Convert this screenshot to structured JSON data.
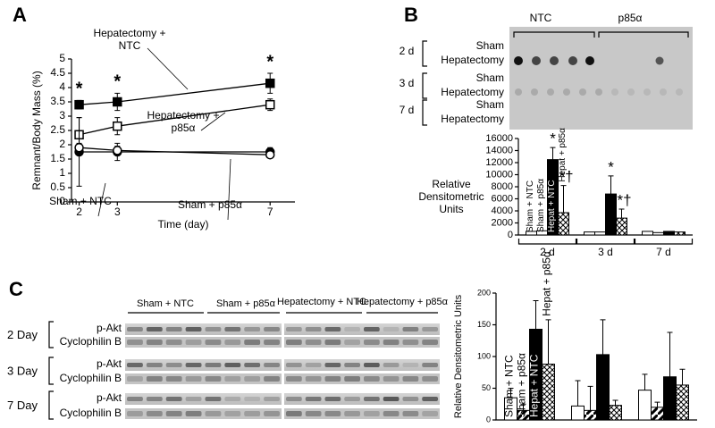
{
  "chart_data": [
    {
      "type": "line",
      "panel": "A",
      "xlabel": "Time (day)",
      "ylabel": "Remnant/Body Mass (%)",
      "x": [
        2,
        3,
        7
      ],
      "xlim": [
        1.8,
        7.65
      ],
      "xticks": [
        2,
        3,
        7
      ],
      "ylim": [
        0,
        5
      ],
      "yticks": [
        0,
        0.5,
        1,
        1.5,
        2,
        2.5,
        3,
        3.5,
        4,
        4.5,
        5
      ],
      "series": [
        {
          "name": "Hepatectomy + NTC",
          "color": "#000000",
          "marker": "square",
          "marker_fill": "#000000",
          "values": [
            3.4,
            3.5,
            4.15
          ],
          "errors": [
            0.15,
            0.3,
            0.35
          ]
        },
        {
          "name": "Hepatectomy + p85α",
          "color": "#000000",
          "marker": "square",
          "marker_fill": "#ffffff",
          "values": [
            2.35,
            2.65,
            3.4
          ],
          "errors": [
            0.6,
            0.3,
            0.2
          ]
        },
        {
          "name": "Sham + NTC",
          "color": "#000000",
          "marker": "circle",
          "marker_fill": "#000000",
          "values": [
            1.75,
            1.75,
            1.75
          ],
          "errors": [
            1.2,
            0.3,
            0.15
          ]
        },
        {
          "name": "Sham + p85α",
          "color": "#000000",
          "marker": "circle",
          "marker_fill": "#ffffff",
          "values": [
            1.9,
            1.8,
            1.65
          ],
          "errors": [
            0.15,
            0.15,
            0.1
          ]
        }
      ],
      "annotations": [
        {
          "text": "*",
          "x": 2
        },
        {
          "text": "*",
          "x": 3
        },
        {
          "text": "*",
          "x": 7
        }
      ]
    },
    {
      "type": "bar",
      "panel": "B",
      "ylabel": "Relative Densitometric Units",
      "categories": [
        "2 d",
        "3 d",
        "7 d"
      ],
      "ylim": [
        0,
        16000
      ],
      "yticks": [
        0,
        2000,
        4000,
        6000,
        8000,
        10000,
        12000,
        14000,
        16000
      ],
      "series": [
        {
          "name": "Sham + NTC",
          "color": "#ffffff",
          "values": [
            600,
            500,
            600
          ],
          "errors": [
            0,
            0,
            0
          ]
        },
        {
          "name": "Sham + p85α",
          "color": "#ffffff",
          "values": [
            700,
            500,
            400
          ],
          "errors": [
            0,
            0,
            0
          ]
        },
        {
          "name": "Hepat + NTC",
          "color": "#000000",
          "values": [
            12500,
            6800,
            600
          ],
          "errors": [
            2000,
            3000,
            0
          ]
        },
        {
          "name": "Hepat + p85α",
          "color": "#ffffff",
          "pattern": "crosshatch",
          "values": [
            3700,
            2800,
            500
          ],
          "errors": [
            4500,
            1500,
            0
          ]
        }
      ],
      "annotations": [
        {
          "text": "*",
          "category": "2 d",
          "series": "Hepat + NTC"
        },
        {
          "text": "*†",
          "category": "2 d",
          "series": "Hepat + p85α"
        },
        {
          "text": "*",
          "category": "3 d",
          "series": "Hepat + NTC"
        },
        {
          "text": "*†",
          "category": "3 d",
          "series": "Hepat + p85α"
        }
      ]
    },
    {
      "type": "bar",
      "panel": "C",
      "ylabel": "Relative Densitometric Units",
      "categories": [
        null,
        null,
        null
      ],
      "ylim": [
        0,
        200
      ],
      "yticks": [
        0,
        50,
        100,
        150,
        200
      ],
      "series": [
        {
          "name": "Sham + NTC",
          "color": "#ffffff",
          "values": [
            35,
            22,
            47
          ],
          "errors": [
            15,
            40,
            25
          ]
        },
        {
          "name": "Sham + p85α",
          "color": "#ffffff",
          "pattern": "diagonal",
          "values": [
            15,
            15,
            20
          ],
          "errors": [
            10,
            38,
            8
          ]
        },
        {
          "name": "Hepat + NTC",
          "color": "#000000",
          "values": [
            143,
            103,
            68
          ],
          "errors": [
            45,
            55,
            70
          ]
        },
        {
          "name": "Hepat + p85α",
          "color": "#ffffff",
          "pattern": "crosshatch",
          "values": [
            88,
            23,
            55
          ],
          "errors": [
            70,
            8,
            25
          ]
        }
      ]
    }
  ],
  "dot_blot": {
    "columns": [
      "NTC",
      "p85α"
    ],
    "days": [
      "2 d",
      "3 d",
      "7 d"
    ],
    "rows": [
      "Sham",
      "Hepatectomy"
    ]
  },
  "western_blot": {
    "groups": [
      "Sham + NTC",
      "Sham + p85α",
      "Hepatectomy + NTC",
      "Hepatectomy + p85α"
    ],
    "days": [
      "2 Day",
      "3 Day",
      "7 Day"
    ],
    "rows": [
      "p-Akt",
      "Cyclophilin B"
    ]
  }
}
